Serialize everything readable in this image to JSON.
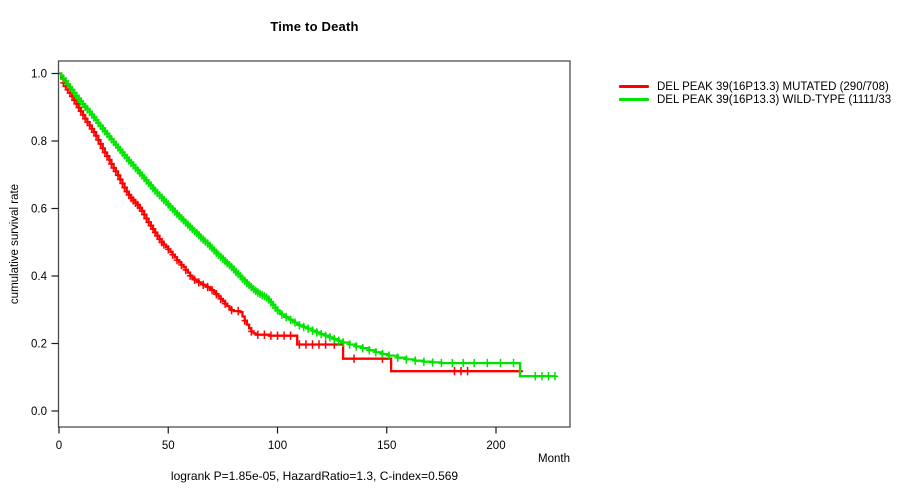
{
  "chart_data": {
    "type": "line",
    "subtype": "kaplan-meier-step-curves",
    "title": "Time to Death",
    "xlabel": "Month",
    "ylabel": "cumulative survival rate",
    "caption": "logrank P=1.85e-05, HazardRatio=1.3, C-index=0.569",
    "xlim": [
      0,
      234
    ],
    "ylim": [
      0,
      1.0
    ],
    "grid": false,
    "legend_position": "outside-right-top",
    "x_ticks": [
      {
        "value": 0,
        "label": "0"
      },
      {
        "value": 50,
        "label": "50"
      },
      {
        "value": 100,
        "label": "100"
      },
      {
        "value": 150,
        "label": "150"
      },
      {
        "value": 200,
        "label": "200"
      }
    ],
    "y_ticks": [
      {
        "value": 0.0,
        "label": "0.0"
      },
      {
        "value": 0.2,
        "label": "0.2"
      },
      {
        "value": 0.4,
        "label": "0.4"
      },
      {
        "value": 0.6,
        "label": "0.6"
      },
      {
        "value": 0.8,
        "label": "0.8"
      },
      {
        "value": 1.0,
        "label": "1.0"
      }
    ],
    "series": [
      {
        "name": "DEL PEAK 39(16P13.3) MUTATED (290/708)",
        "color": "#ff0000",
        "points": [
          [
            0,
            1.0
          ],
          [
            1,
            0.985
          ],
          [
            2,
            0.972
          ],
          [
            3,
            0.962
          ],
          [
            4,
            0.952
          ],
          [
            5,
            0.942
          ],
          [
            6,
            0.932
          ],
          [
            7,
            0.921
          ],
          [
            8,
            0.91
          ],
          [
            9,
            0.899
          ],
          [
            10,
            0.888
          ],
          [
            11,
            0.877
          ],
          [
            12,
            0.866
          ],
          [
            13,
            0.856
          ],
          [
            14,
            0.846
          ],
          [
            15,
            0.836
          ],
          [
            16,
            0.826
          ],
          [
            17,
            0.815
          ],
          [
            18,
            0.803
          ],
          [
            19,
            0.791
          ],
          [
            20,
            0.778
          ],
          [
            21,
            0.766
          ],
          [
            22,
            0.755
          ],
          [
            23,
            0.744
          ],
          [
            24,
            0.732
          ],
          [
            25,
            0.72
          ],
          [
            26,
            0.71
          ],
          [
            27,
            0.698
          ],
          [
            28,
            0.686
          ],
          [
            29,
            0.674
          ],
          [
            30,
            0.662
          ],
          [
            31,
            0.65
          ],
          [
            32,
            0.64
          ],
          [
            33,
            0.631
          ],
          [
            34,
            0.624
          ],
          [
            35,
            0.617
          ],
          [
            36,
            0.61
          ],
          [
            37,
            0.602
          ],
          [
            38,
            0.593
          ],
          [
            39,
            0.582
          ],
          [
            40,
            0.57
          ],
          [
            41,
            0.559
          ],
          [
            42,
            0.549
          ],
          [
            43,
            0.539
          ],
          [
            44,
            0.529
          ],
          [
            45,
            0.519
          ],
          [
            46,
            0.509
          ],
          [
            47,
            0.5
          ],
          [
            48,
            0.493
          ],
          [
            49,
            0.486
          ],
          [
            50,
            0.479
          ],
          [
            51,
            0.471
          ],
          [
            52,
            0.463
          ],
          [
            53,
            0.455
          ],
          [
            54,
            0.447
          ],
          [
            55,
            0.44
          ],
          [
            56,
            0.433
          ],
          [
            57,
            0.426
          ],
          [
            58,
            0.418
          ],
          [
            59,
            0.41
          ],
          [
            60,
            0.401
          ],
          [
            61,
            0.394
          ],
          [
            62,
            0.389
          ],
          [
            63,
            0.385
          ],
          [
            64,
            0.381
          ],
          [
            65,
            0.377
          ],
          [
            66,
            0.374
          ],
          [
            67,
            0.371
          ],
          [
            68,
            0.367
          ],
          [
            69,
            0.363
          ],
          [
            70,
            0.358
          ],
          [
            71,
            0.352
          ],
          [
            72,
            0.346
          ],
          [
            73,
            0.339
          ],
          [
            74,
            0.332
          ],
          [
            75,
            0.325
          ],
          [
            76,
            0.318
          ],
          [
            77,
            0.311
          ],
          [
            78,
            0.304
          ],
          [
            79,
            0.299
          ],
          [
            80,
            0.296
          ],
          [
            83,
            0.293
          ],
          [
            84,
            0.28
          ],
          [
            85,
            0.268
          ],
          [
            86,
            0.256
          ],
          [
            87,
            0.245
          ],
          [
            88,
            0.236
          ],
          [
            89,
            0.23
          ],
          [
            90,
            0.226
          ],
          [
            96,
            0.223
          ],
          [
            109,
            0.197
          ],
          [
            130,
            0.155
          ],
          [
            152,
            0.118
          ],
          [
            212,
            0.118
          ]
        ],
        "censor_months": [
          2,
          3,
          4,
          5,
          6,
          7,
          8,
          9,
          10,
          11,
          12,
          13,
          14,
          15,
          16,
          17,
          18,
          19,
          20,
          21,
          22,
          23,
          24,
          25,
          26,
          27,
          28,
          29,
          30,
          31,
          32,
          33,
          34,
          35,
          36,
          37,
          38,
          39,
          40,
          41,
          42,
          43,
          44,
          45,
          46,
          47,
          48,
          50,
          52,
          54,
          56,
          58,
          60,
          62,
          64,
          66,
          68,
          70,
          72,
          74,
          76,
          79,
          82,
          85,
          88,
          91,
          94,
          97,
          100,
          103,
          106,
          110,
          113,
          116,
          119,
          122,
          126,
          135,
          148,
          181,
          184,
          187,
          211
        ]
      },
      {
        "name": "DEL PEAK 39(16P13.3) WILD-TYPE (1111/33",
        "color": "#00e400",
        "points": [
          [
            0,
            1.0
          ],
          [
            1,
            0.993
          ],
          [
            2,
            0.985
          ],
          [
            3,
            0.977
          ],
          [
            4,
            0.968
          ],
          [
            5,
            0.959
          ],
          [
            6,
            0.951
          ],
          [
            7,
            0.942
          ],
          [
            8,
            0.934
          ],
          [
            9,
            0.925
          ],
          [
            10,
            0.917
          ],
          [
            11,
            0.909
          ],
          [
            12,
            0.901
          ],
          [
            13,
            0.894
          ],
          [
            14,
            0.886
          ],
          [
            15,
            0.878
          ],
          [
            16,
            0.87
          ],
          [
            17,
            0.862
          ],
          [
            18,
            0.853
          ],
          [
            19,
            0.845
          ],
          [
            20,
            0.837
          ],
          [
            21,
            0.829
          ],
          [
            22,
            0.821
          ],
          [
            23,
            0.813
          ],
          [
            24,
            0.805
          ],
          [
            25,
            0.797
          ],
          [
            26,
            0.789
          ],
          [
            27,
            0.781
          ],
          [
            28,
            0.773
          ],
          [
            29,
            0.766
          ],
          [
            30,
            0.758
          ],
          [
            31,
            0.75
          ],
          [
            32,
            0.742
          ],
          [
            33,
            0.735
          ],
          [
            34,
            0.728
          ],
          [
            35,
            0.72
          ],
          [
            36,
            0.713
          ],
          [
            37,
            0.705
          ],
          [
            38,
            0.698
          ],
          [
            39,
            0.69
          ],
          [
            40,
            0.683
          ],
          [
            41,
            0.675
          ],
          [
            42,
            0.668
          ],
          [
            43,
            0.66
          ],
          [
            44,
            0.653
          ],
          [
            45,
            0.646
          ],
          [
            46,
            0.639
          ],
          [
            47,
            0.632
          ],
          [
            48,
            0.625
          ],
          [
            49,
            0.619
          ],
          [
            50,
            0.612
          ],
          [
            51,
            0.605
          ],
          [
            52,
            0.598
          ],
          [
            53,
            0.591
          ],
          [
            54,
            0.584
          ],
          [
            55,
            0.578
          ],
          [
            56,
            0.571
          ],
          [
            57,
            0.565
          ],
          [
            58,
            0.558
          ],
          [
            59,
            0.552
          ],
          [
            60,
            0.546
          ],
          [
            61,
            0.539
          ],
          [
            62,
            0.533
          ],
          [
            63,
            0.527
          ],
          [
            64,
            0.521
          ],
          [
            65,
            0.514
          ],
          [
            66,
            0.508
          ],
          [
            67,
            0.502
          ],
          [
            68,
            0.496
          ],
          [
            69,
            0.489
          ],
          [
            70,
            0.483
          ],
          [
            71,
            0.476
          ],
          [
            72,
            0.469
          ],
          [
            73,
            0.463
          ],
          [
            74,
            0.457
          ],
          [
            75,
            0.451
          ],
          [
            76,
            0.444
          ],
          [
            77,
            0.438
          ],
          [
            78,
            0.432
          ],
          [
            79,
            0.426
          ],
          [
            80,
            0.419
          ],
          [
            81,
            0.412
          ],
          [
            82,
            0.406
          ],
          [
            83,
            0.399
          ],
          [
            84,
            0.392
          ],
          [
            85,
            0.386
          ],
          [
            86,
            0.379
          ],
          [
            87,
            0.373
          ],
          [
            88,
            0.367
          ],
          [
            89,
            0.361
          ],
          [
            90,
            0.356
          ],
          [
            91,
            0.351
          ],
          [
            92,
            0.347
          ],
          [
            93,
            0.343
          ],
          [
            94,
            0.34
          ],
          [
            95,
            0.336
          ],
          [
            96,
            0.33
          ],
          [
            97,
            0.322
          ],
          [
            98,
            0.314
          ],
          [
            99,
            0.306
          ],
          [
            100,
            0.298
          ],
          [
            101,
            0.291
          ],
          [
            102,
            0.286
          ],
          [
            103,
            0.282
          ],
          [
            104,
            0.278
          ],
          [
            105,
            0.274
          ],
          [
            106,
            0.27
          ],
          [
            107,
            0.266
          ],
          [
            108,
            0.262
          ],
          [
            109,
            0.258
          ],
          [
            110,
            0.254
          ],
          [
            112,
            0.249
          ],
          [
            114,
            0.244
          ],
          [
            116,
            0.238
          ],
          [
            118,
            0.233
          ],
          [
            120,
            0.228
          ],
          [
            122,
            0.223
          ],
          [
            124,
            0.218
          ],
          [
            126,
            0.213
          ],
          [
            128,
            0.208
          ],
          [
            130,
            0.203
          ],
          [
            133,
            0.197
          ],
          [
            136,
            0.191
          ],
          [
            139,
            0.186
          ],
          [
            142,
            0.18
          ],
          [
            145,
            0.174
          ],
          [
            148,
            0.169
          ],
          [
            151,
            0.164
          ],
          [
            155,
            0.158
          ],
          [
            159,
            0.153
          ],
          [
            163,
            0.149
          ],
          [
            167,
            0.146
          ],
          [
            171,
            0.144
          ],
          [
            175,
            0.142
          ],
          [
            211,
            0.142
          ],
          [
            211,
            0.103
          ],
          [
            227,
            0.103
          ]
        ],
        "censor_months": [
          2,
          3,
          4,
          5,
          6,
          7,
          8,
          9,
          10,
          11,
          12,
          13,
          14,
          15,
          16,
          17,
          18,
          19,
          20,
          21,
          22,
          23,
          24,
          25,
          26,
          27,
          28,
          29,
          30,
          31,
          32,
          33,
          34,
          35,
          36,
          37,
          38,
          39,
          40,
          41,
          42,
          43,
          44,
          45,
          46,
          47,
          48,
          49,
          50,
          51,
          52,
          53,
          54,
          55,
          56,
          57,
          58,
          59,
          60,
          61,
          62,
          63,
          64,
          65,
          66,
          67,
          68,
          69,
          70,
          71,
          72,
          73,
          74,
          75,
          76,
          77,
          78,
          79,
          80,
          81,
          82,
          83,
          84,
          85,
          86,
          87,
          88,
          89,
          90,
          91,
          92,
          93,
          94,
          95,
          96,
          97,
          98,
          99,
          100,
          102,
          104,
          106,
          108,
          110,
          112,
          114,
          116,
          118,
          120,
          122,
          124,
          126,
          128,
          130,
          133,
          136,
          139,
          142,
          145,
          148,
          151,
          155,
          159,
          163,
          167,
          171,
          175,
          180,
          185,
          190,
          196,
          202,
          208,
          218,
          221,
          224,
          227
        ]
      }
    ]
  },
  "colors": {
    "background": "#ffffff",
    "axis_box": "#4d4d4d",
    "tick": "#1a1a1a",
    "text": "#000000",
    "curve_mutated": "#ff0000",
    "curve_wildtype": "#00e400"
  }
}
